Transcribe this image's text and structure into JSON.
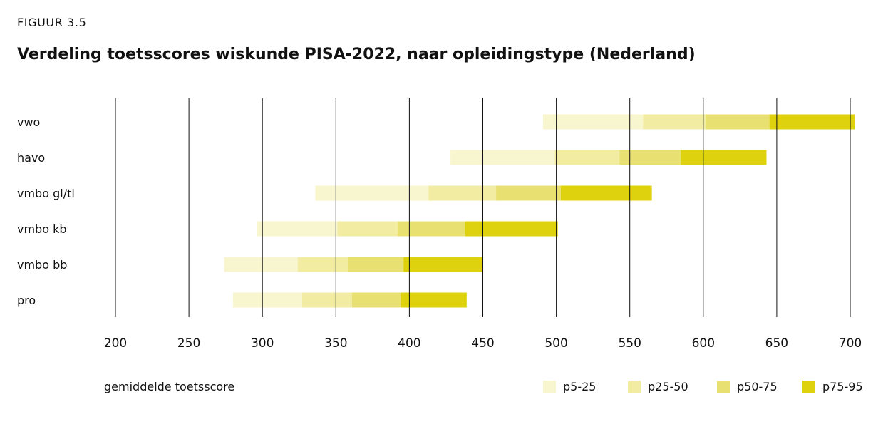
{
  "figure_label": "FIGUUR 3.5",
  "title": "Verdeling toetsscores wiskunde PISA-2022, naar opleidingstype (Nederland)",
  "colors": {
    "p5_25": "#f8f6cf",
    "p25_50": "#f1eca2",
    "p50_75": "#e8e172",
    "p75_95": "#ddd20d",
    "grid": "#111111"
  },
  "chart_data": {
    "type": "bar",
    "orientation": "horizontal-stacked-range",
    "title": "Verdeling toetsscores wiskunde PISA-2022, naar opleidingstype (Nederland)",
    "xlabel": "gemiddelde toetsscore",
    "xlim": [
      200,
      700
    ],
    "xticks": [
      200,
      250,
      300,
      350,
      400,
      450,
      500,
      550,
      600,
      650,
      700
    ],
    "legend": [
      {
        "key": "p5_25",
        "label": "p5-25"
      },
      {
        "key": "p25_50",
        "label": "p25-50"
      },
      {
        "key": "p50_75",
        "label": "p50-75"
      },
      {
        "key": "p75_95",
        "label": "p75-95"
      }
    ],
    "categories": [
      "vwo",
      "havo",
      "vmbo gl/tl",
      "vmbo kb",
      "vmbo bb",
      "pro"
    ],
    "percentiles": [
      {
        "category": "vwo",
        "p5": 491,
        "p25": 559,
        "p50": 602,
        "p75": 645,
        "p95": 703
      },
      {
        "category": "havo",
        "p5": 428,
        "p25": 499,
        "p50": 543,
        "p75": 585,
        "p95": 643
      },
      {
        "category": "vmbo gl/tl",
        "p5": 336,
        "p25": 413,
        "p50": 459,
        "p75": 503,
        "p95": 565
      },
      {
        "category": "vmbo kb",
        "p5": 296,
        "p25": 351,
        "p50": 392,
        "p75": 438,
        "p95": 501
      },
      {
        "category": "vmbo bb",
        "p5": 274,
        "p25": 324,
        "p50": 358,
        "p75": 396,
        "p95": 450
      },
      {
        "category": "pro",
        "p5": 280,
        "p25": 327,
        "p50": 361,
        "p75": 394,
        "p95": 439
      }
    ]
  }
}
